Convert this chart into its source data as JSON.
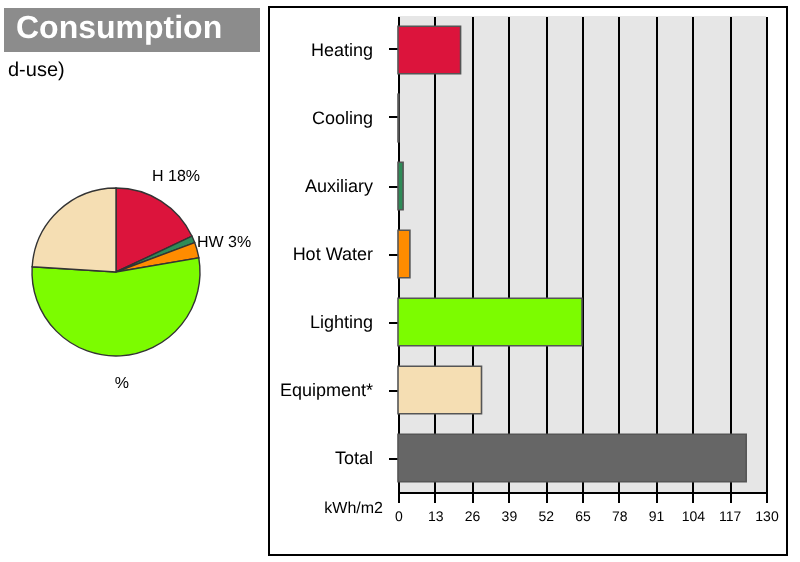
{
  "chart_data": [
    {
      "type": "pie",
      "title": "Consumption",
      "subtitle": "d-use)",
      "categories": [
        "H 18%",
        null,
        null,
        "HW 3%",
        "%",
        null
      ],
      "values": [
        18,
        null,
        1.3,
        3,
        53.7,
        24
      ],
      "colors": [
        "#dc143c",
        "#3050c0",
        "#2e8b57",
        "#ff8c00",
        "#7cfc00",
        "#f5deb3"
      ],
      "legend": false
    },
    {
      "type": "bar",
      "orientation": "horizontal",
      "xlabel": "kWh/m2",
      "categories": [
        "Heating",
        "Cooling",
        "Auxiliary",
        "Hot Water",
        "Lighting",
        "Equipment*",
        "Total"
      ],
      "values": [
        22.1,
        0.3,
        1.8,
        4.2,
        65,
        29.5,
        123
      ],
      "colors": [
        "#dc143c",
        "#3050c0",
        "#2e8b57",
        "#ff8c00",
        "#7cfc00",
        "#f5deb3",
        "#666666"
      ],
      "xlim": [
        0,
        130
      ],
      "xticks": [
        0,
        13,
        26,
        39,
        52,
        65,
        78,
        91,
        104,
        117,
        130
      ],
      "grid": "x",
      "legend": false
    }
  ]
}
